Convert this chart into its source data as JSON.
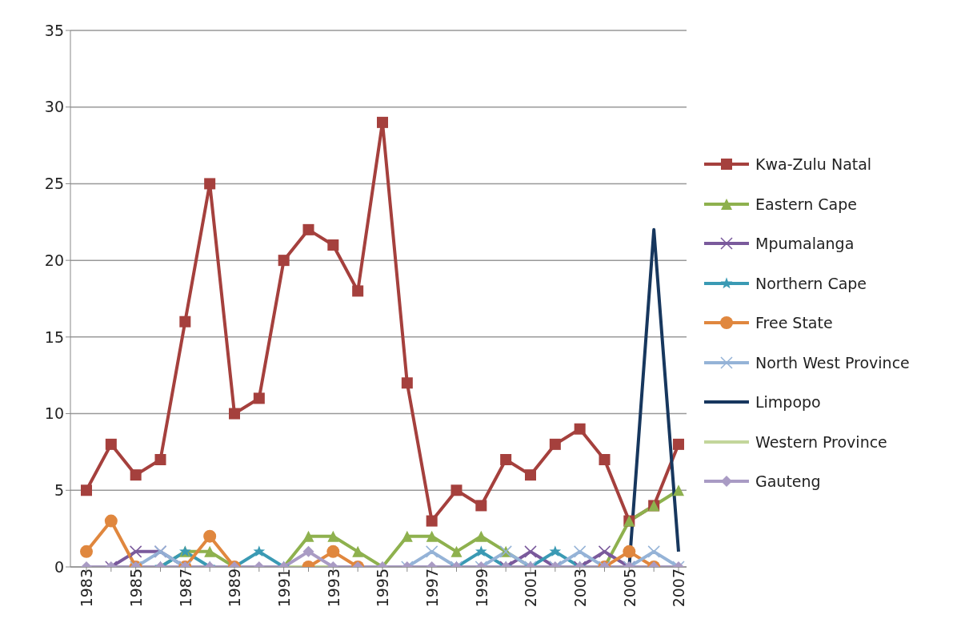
{
  "chart_data": {
    "type": "line",
    "categories": [
      "1983",
      null,
      "1985",
      null,
      "1987",
      null,
      "1989",
      null,
      "1991",
      null,
      "1993",
      null,
      "1995",
      null,
      "1997",
      null,
      "1999",
      null,
      "2001",
      null,
      "2003",
      null,
      "2005",
      null,
      "2007"
    ],
    "ylim": [
      0,
      35
    ],
    "yticks": [
      0,
      5,
      10,
      15,
      20,
      25,
      30,
      35
    ],
    "grid": "y",
    "legend": "right",
    "series": [
      {
        "name": "Kwa-Zulu Natal",
        "color": "#a5403d",
        "marker": "square",
        "values": [
          5,
          8,
          6,
          7,
          16,
          25,
          10,
          11,
          20,
          22,
          21,
          18,
          29,
          12,
          3,
          5,
          4,
          7,
          6,
          8,
          9,
          7,
          3,
          4,
          8
        ]
      },
      {
        "name": "Eastern Cape",
        "color": "#8eb14e",
        "marker": "triangle",
        "values": [
          null,
          null,
          null,
          0,
          1,
          1,
          0,
          null,
          0,
          2,
          2,
          1,
          0,
          2,
          2,
          1,
          2,
          1,
          0,
          null,
          null,
          0,
          3,
          4,
          5
        ]
      },
      {
        "name": "Mpumalanga",
        "color": "#7a5a9c",
        "marker": "cross",
        "values": [
          null,
          0,
          1,
          1,
          0,
          null,
          null,
          null,
          null,
          null,
          null,
          null,
          null,
          null,
          null,
          null,
          null,
          0,
          1,
          0,
          0,
          1,
          0,
          null,
          null
        ]
      },
      {
        "name": "Northern Cape",
        "color": "#3a9ab4",
        "marker": "star",
        "values": [
          null,
          null,
          null,
          0,
          1,
          0,
          0,
          1,
          0,
          null,
          null,
          null,
          null,
          null,
          null,
          0,
          1,
          0,
          0,
          1,
          0,
          null,
          null,
          null,
          null
        ]
      },
      {
        "name": "Free State",
        "color": "#e0873e",
        "marker": "circle",
        "values": [
          1,
          3,
          0,
          null,
          0,
          2,
          0,
          null,
          null,
          0,
          1,
          0,
          null,
          null,
          null,
          null,
          null,
          null,
          null,
          null,
          null,
          0,
          1,
          0,
          null
        ]
      },
      {
        "name": "North West Province",
        "color": "#95b3d7",
        "marker": "cross",
        "values": [
          null,
          null,
          0,
          1,
          0,
          null,
          null,
          null,
          null,
          null,
          null,
          null,
          null,
          0,
          1,
          0,
          0,
          1,
          0,
          0,
          1,
          0,
          0,
          1,
          0
        ]
      },
      {
        "name": "Limpopo",
        "color": "#17375e",
        "marker": "none",
        "values": [
          null,
          null,
          null,
          null,
          null,
          null,
          null,
          null,
          null,
          null,
          null,
          null,
          null,
          null,
          null,
          null,
          null,
          null,
          null,
          null,
          null,
          null,
          0,
          22,
          1
        ]
      },
      {
        "name": "Western Province",
        "color": "#c3d69b",
        "marker": "none",
        "values": [
          null,
          null,
          null,
          null,
          null,
          null,
          null,
          null,
          0,
          0,
          0,
          null,
          null,
          null,
          null,
          null,
          null,
          null,
          null,
          null,
          null,
          null,
          null,
          null,
          null
        ]
      },
      {
        "name": "Gauteng",
        "color": "#a99bc4",
        "marker": "diamond",
        "values": [
          0,
          0,
          0,
          0,
          0,
          0,
          0,
          0,
          0,
          1,
          0,
          0,
          0,
          0,
          0,
          0,
          0,
          0,
          0,
          0,
          0,
          0,
          0,
          0,
          0
        ]
      }
    ]
  }
}
